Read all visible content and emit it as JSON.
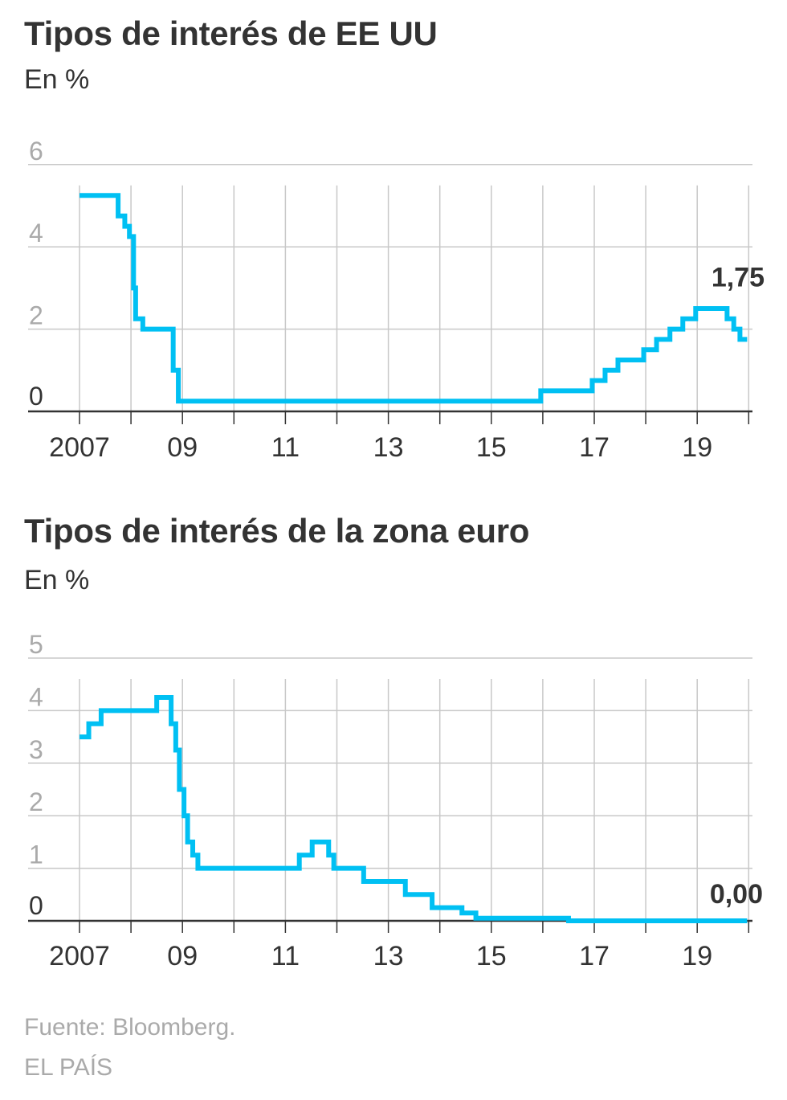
{
  "charts": [
    {
      "title": "Tipos de interés de EE UU",
      "subtitle": "En %"
    },
    {
      "title": "Tipos de interés de la zona euro",
      "subtitle": "En %"
    }
  ],
  "footer": {
    "source": "Fuente: Bloomberg.",
    "credit": "EL PAÍS"
  },
  "colors": {
    "line": "#00c0f3",
    "text": "#333333",
    "muted": "#aaaaaa",
    "grid": "#c8c8c8"
  },
  "chart_data": [
    {
      "type": "line",
      "title": "Tipos de interés de EE UU",
      "subtitle": "En %",
      "xlabel": "",
      "ylabel": "En %",
      "xlim": [
        2007.0,
        2020.0
      ],
      "ylim": [
        0,
        6
      ],
      "yticks": [
        0,
        2,
        4,
        6
      ],
      "xticks": [
        2007,
        2009,
        2011,
        2013,
        2015,
        2017,
        2019
      ],
      "xtick_labels": [
        "2007",
        "09",
        "11",
        "13",
        "15",
        "17",
        "19"
      ],
      "grid": true,
      "step": true,
      "series": [
        {
          "name": "EE UU",
          "x": [
            2007.0,
            2007.75,
            2007.88,
            2007.97,
            2008.05,
            2008.09,
            2008.23,
            2008.33,
            2008.82,
            2008.92,
            2008.99,
            2015.96,
            2016.96,
            2017.21,
            2017.46,
            2017.96,
            2018.21,
            2018.47,
            2018.72,
            2018.97,
            2019.58,
            2019.71,
            2019.83,
            2019.97
          ],
          "values": [
            5.25,
            4.75,
            4.5,
            4.25,
            3.0,
            2.25,
            2.0,
            2.0,
            1.0,
            0.25,
            0.25,
            0.5,
            0.75,
            1.0,
            1.25,
            1.5,
            1.75,
            2.0,
            2.25,
            2.5,
            2.25,
            2.0,
            1.75,
            1.75
          ]
        }
      ],
      "end_label": "1,75"
    },
    {
      "type": "line",
      "title": "Tipos de interés de la zona euro",
      "subtitle": "En %",
      "xlabel": "",
      "ylabel": "En %",
      "xlim": [
        2007.0,
        2020.0
      ],
      "ylim": [
        0,
        5
      ],
      "yticks": [
        0,
        1,
        2,
        3,
        4,
        5
      ],
      "xticks": [
        2007,
        2009,
        2011,
        2013,
        2015,
        2017,
        2019
      ],
      "xtick_labels": [
        "2007",
        "09",
        "11",
        "13",
        "15",
        "17",
        "19"
      ],
      "grid": true,
      "step": true,
      "series": [
        {
          "name": "Zona euro",
          "x": [
            2007.0,
            2007.18,
            2007.42,
            2008.5,
            2008.78,
            2008.87,
            2008.94,
            2009.03,
            2009.1,
            2009.2,
            2009.3,
            2011.27,
            2011.52,
            2011.84,
            2011.94,
            2012.52,
            2013.33,
            2013.85,
            2014.43,
            2014.7,
            2016.2,
            2016.5,
            2019.97
          ],
          "values": [
            3.5,
            3.75,
            4.0,
            4.25,
            3.75,
            3.25,
            2.5,
            2.0,
            1.5,
            1.25,
            1.0,
            1.25,
            1.5,
            1.25,
            1.0,
            0.75,
            0.5,
            0.25,
            0.15,
            0.05,
            0.05,
            0.0,
            0.0
          ]
        }
      ],
      "end_label": "0,00"
    }
  ]
}
